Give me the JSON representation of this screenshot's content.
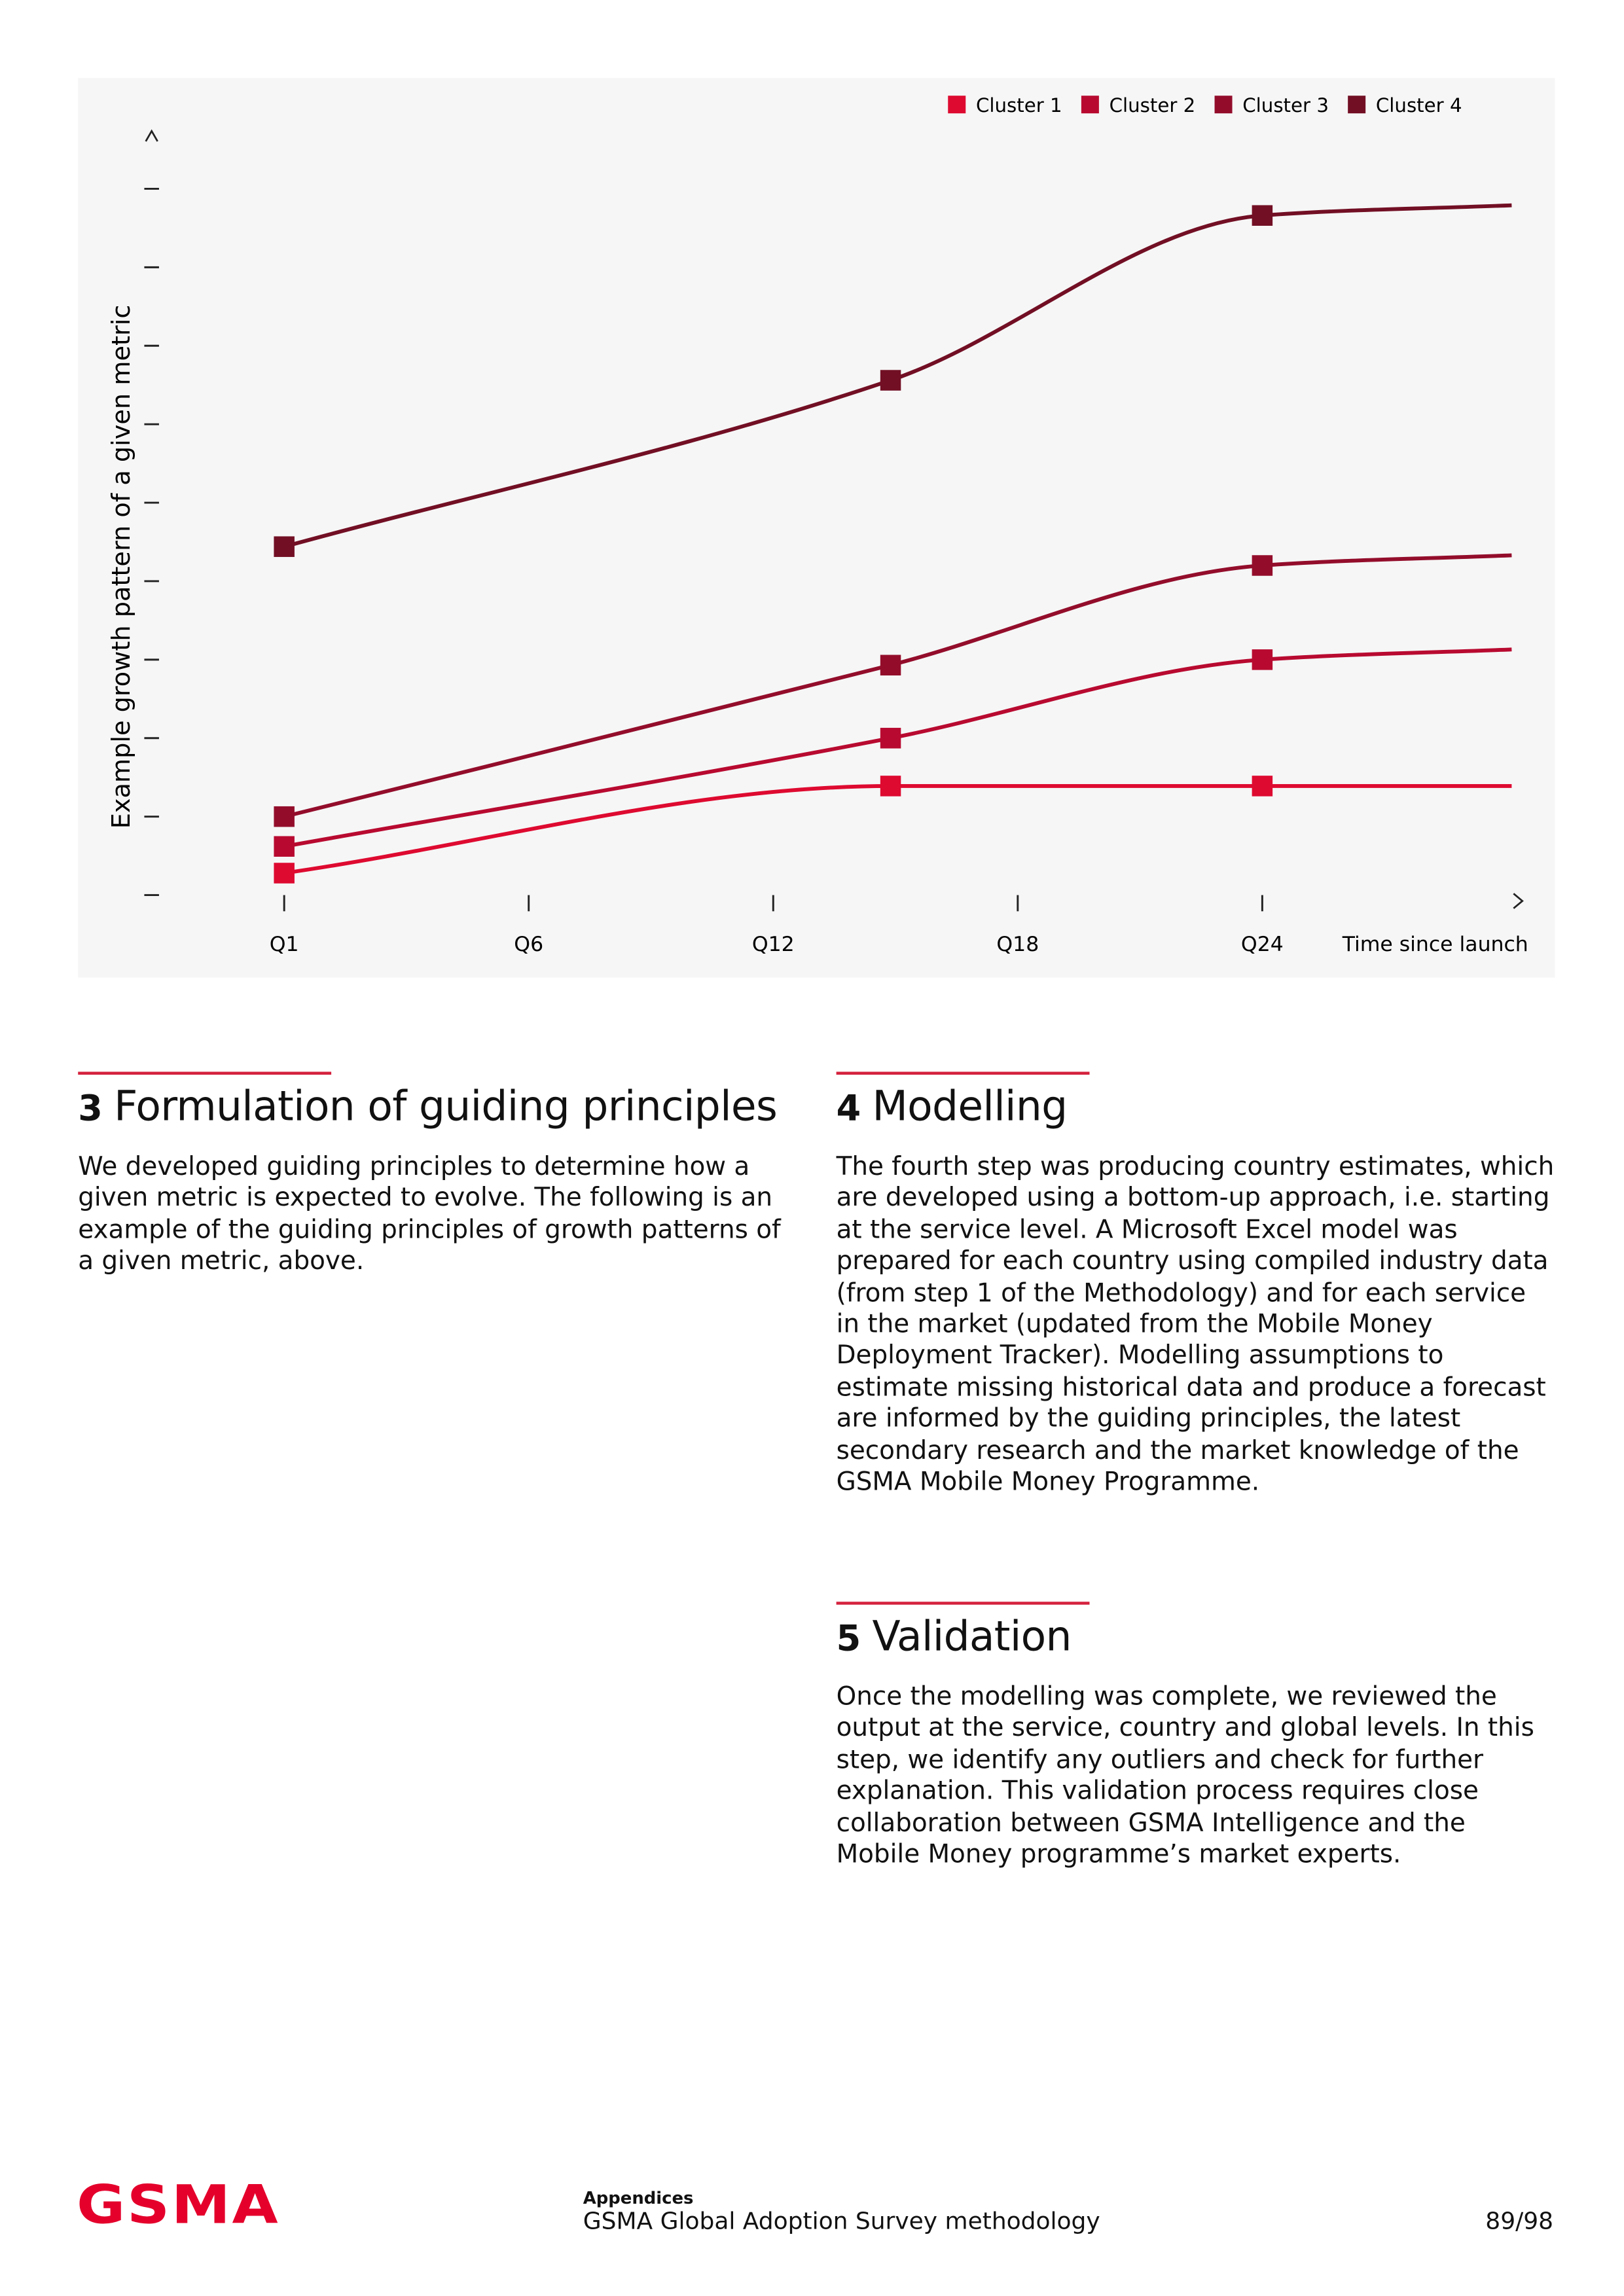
{
  "chart_data": {
    "type": "line",
    "y_label": "Example growth pattern of a given metric",
    "x_label": "Time since launch",
    "x": [
      0,
      2.48,
      4,
      5.02
    ],
    "xlim": [
      -0.53,
      5.1
    ],
    "xticks": [
      {
        "value": 0,
        "label": "Q1"
      },
      {
        "value": 1,
        "label": "Q6"
      },
      {
        "value": 2,
        "label": "Q12"
      },
      {
        "value": 3,
        "label": "Q18"
      },
      {
        "value": 4,
        "label": "Q24"
      }
    ],
    "ylim": [
      0,
      9.68
    ],
    "yticks": [
      0,
      1,
      2,
      3,
      4,
      5,
      6,
      7,
      8,
      9
    ],
    "legend": "top-right",
    "series": [
      {
        "name": "Cluster 1",
        "color": "#de0a30",
        "values": [
          0.28,
          1.39,
          1.39,
          1.39
        ]
      },
      {
        "name": "Cluster 2",
        "color": "#b80a30",
        "values": [
          0.62,
          2.0,
          3.0,
          3.13
        ]
      },
      {
        "name": "Cluster 3",
        "color": "#930d2b",
        "values": [
          1.0,
          2.93,
          4.2,
          4.33
        ]
      },
      {
        "name": "Cluster 4",
        "color": "#720f24",
        "values": [
          4.44,
          6.56,
          8.66,
          8.79
        ]
      }
    ]
  },
  "sections": [
    {
      "number": "3",
      "title": "Formulation of guiding principles",
      "text": "We developed guiding principles to determine how a given metric is expected to evolve. The following is an example of the guiding principles of growth patterns of a given metric, above."
    },
    {
      "number": "4",
      "title": "Modelling",
      "text": "The fourth step was producing country estimates, which are developed using a bottom-up approach, i.e. starting at the service level. A Microsoft Excel model was prepared for each country using compiled industry data (from step 1 of the Methodology) and for each service in the market (updated from the Mobile Money Deployment Tracker). Modelling assumptions to estimate missing historical data and produce a forecast are informed by the guiding principles, the latest secondary research and the market knowledge of the GSMA Mobile Money Programme."
    },
    {
      "number": "5",
      "title": "Validation",
      "text": "Once the modelling was complete, we reviewed the output at the service, country and global levels. In this step, we identify any outliers and check for further explanation. This validation process requires close collaboration between GSMA Intelligence and the Mobile Money programme’s market experts."
    }
  ],
  "footer": {
    "logo": "GSMA",
    "section": "Appendices",
    "document": "GSMA Global Adoption Survey methodology",
    "page": "89/98"
  }
}
